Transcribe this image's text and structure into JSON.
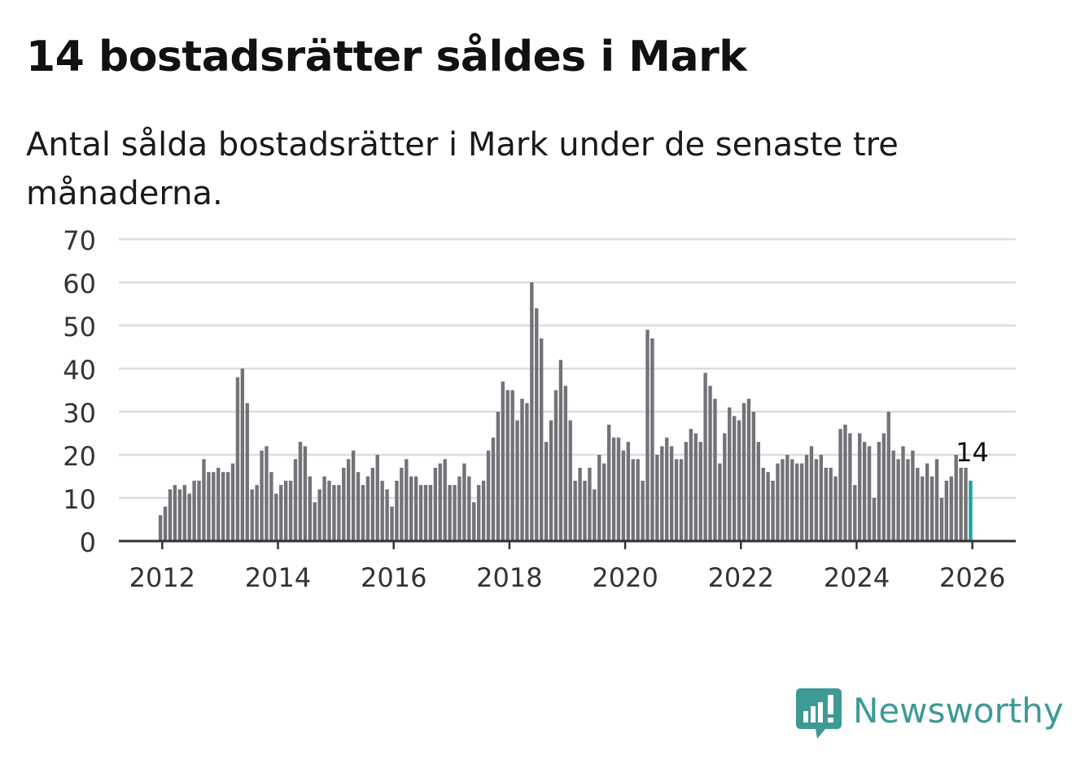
{
  "header": {
    "title": "14 bostadsrätter såldes i Mark",
    "subtitle": "Antal sålda bostadsrätter i Mark under de senaste tre månaderna."
  },
  "brand": {
    "name": "Newsworthy",
    "icon": "newsworthy-logo-icon",
    "color": "#3e9a96"
  },
  "colors": {
    "bar": "#737278",
    "highlight": "#1aa39a",
    "grid": "#dddddd",
    "axis": "#333333",
    "tick_label": "#333333"
  },
  "chart_data": {
    "type": "bar",
    "title": "14 bostadsrätter såldes i Mark",
    "subtitle": "Antal sålda bostadsrätter i Mark under de senaste tre månaderna.",
    "xlabel": "",
    "ylabel": "",
    "ylim": [
      0,
      70
    ],
    "yticks": [
      0,
      10,
      20,
      30,
      40,
      50,
      60,
      70
    ],
    "xlim": [
      2011.25,
      2026.75
    ],
    "xticks": [
      2012,
      2014,
      2016,
      2018,
      2020,
      2022,
      2024,
      2026
    ],
    "grid": true,
    "start": "2012-01",
    "interval": "month",
    "values": [
      6,
      8,
      12,
      13,
      12,
      13,
      11,
      14,
      14,
      19,
      16,
      16,
      17,
      16,
      16,
      18,
      38,
      40,
      32,
      12,
      13,
      21,
      22,
      16,
      11,
      13,
      14,
      14,
      19,
      23,
      22,
      15,
      9,
      12,
      15,
      14,
      13,
      13,
      17,
      19,
      21,
      16,
      13,
      15,
      17,
      20,
      14,
      12,
      8,
      14,
      17,
      19,
      15,
      15,
      13,
      13,
      13,
      17,
      18,
      19,
      13,
      13,
      15,
      18,
      15,
      9,
      13,
      14,
      21,
      24,
      30,
      37,
      35,
      35,
      28,
      33,
      32,
      60,
      54,
      47,
      23,
      28,
      35,
      42,
      36,
      28,
      14,
      17,
      14,
      17,
      12,
      20,
      18,
      27,
      24,
      24,
      21,
      23,
      19,
      19,
      14,
      49,
      47,
      20,
      22,
      24,
      22,
      19,
      19,
      23,
      26,
      25,
      23,
      39,
      36,
      33,
      18,
      25,
      31,
      29,
      28,
      32,
      33,
      30,
      23,
      17,
      16,
      14,
      18,
      19,
      20,
      19,
      18,
      18,
      20,
      22,
      19,
      20,
      17,
      17,
      15,
      26,
      27,
      25,
      13,
      25,
      23,
      22,
      10,
      23,
      25,
      30,
      21,
      19,
      22,
      19,
      21,
      17,
      15,
      18,
      15,
      19,
      10,
      14,
      15,
      20,
      17,
      17,
      14
    ],
    "highlight": {
      "label": "14",
      "value": 14,
      "period": "2026-01"
    }
  }
}
